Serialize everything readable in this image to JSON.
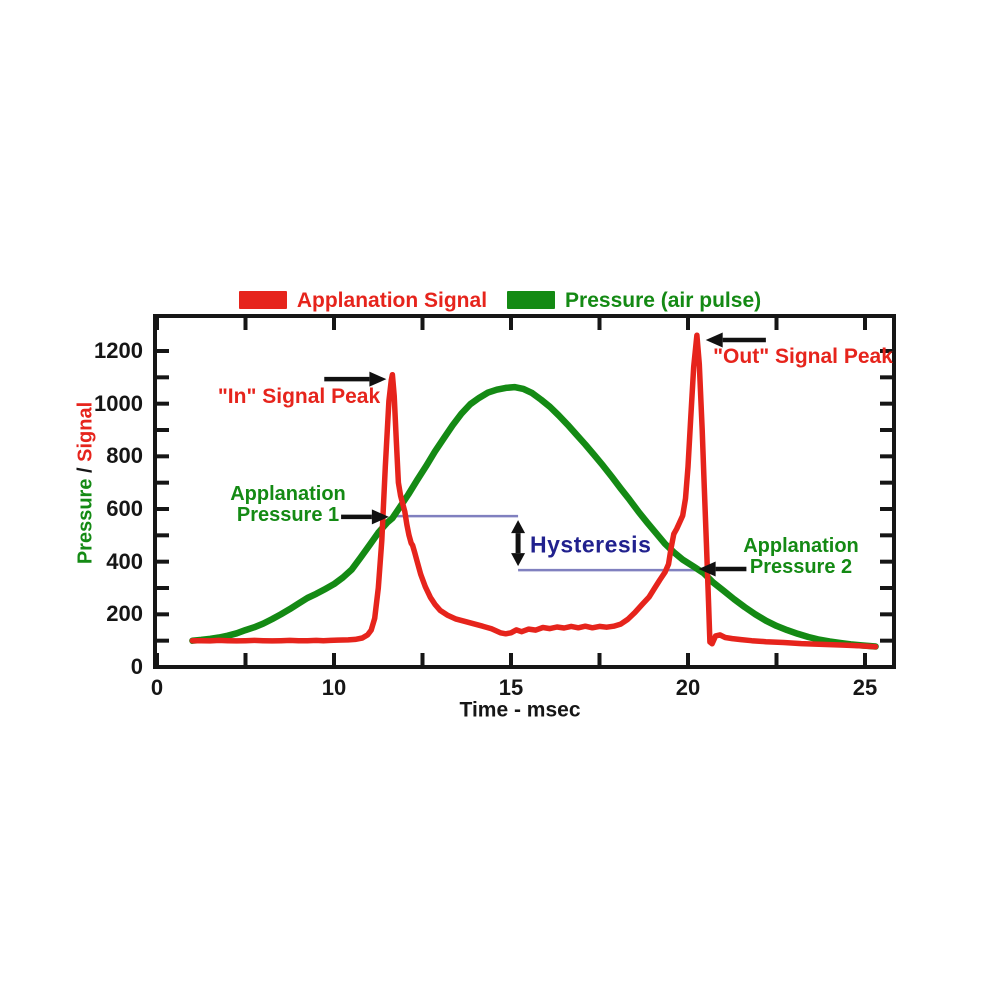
{
  "figure": {
    "description": "Ocular Response Analyzer style waveform: applanation signal and air-pulse pressure versus time"
  },
  "colors": {
    "signal_red": "#e6241c",
    "pressure_green": "#148a14",
    "hysteresis_navy": "#21218e",
    "ref_line_blue": "#8080bf",
    "axis_black": "#161616",
    "arrow_black": "#111111"
  },
  "chart_data": {
    "type": "line",
    "title": "",
    "x_axis": {
      "label": "Time - msec",
      "tick_values": [
        0,
        5,
        10,
        12.5,
        15,
        17.5,
        20,
        22.5,
        25
      ],
      "tick_labels": [
        "0",
        "",
        "10",
        "",
        "15",
        "",
        "20",
        "",
        "25"
      ]
    },
    "y_axis": {
      "label_parts": [
        {
          "text": "Pressure",
          "color": "#148a14"
        },
        {
          "text": " / ",
          "color": "#161616"
        },
        {
          "text": "Signal",
          "color": "#e6241c"
        }
      ],
      "min": 0,
      "max": 1340,
      "minor_tick_step": 100,
      "label_step": 200,
      "label_max": 1200
    },
    "legend": {
      "position": "top",
      "items": [
        {
          "label": "Applanation Signal",
          "color": "#e6241c"
        },
        {
          "label": "Pressure (air pulse)",
          "color": "#148a14"
        }
      ]
    },
    "series": [
      {
        "name": "Pressure (air pulse)",
        "color": "#148a14",
        "stroke_width": 6.5,
        "points": [
          [
            2.0,
            100
          ],
          [
            2.5,
            103
          ],
          [
            3.0,
            107
          ],
          [
            3.5,
            112
          ],
          [
            4.0,
            119
          ],
          [
            4.5,
            128
          ],
          [
            5.0,
            140
          ],
          [
            5.5,
            151
          ],
          [
            6.0,
            165
          ],
          [
            6.5,
            182
          ],
          [
            7.0,
            200
          ],
          [
            7.5,
            220
          ],
          [
            8.0,
            241
          ],
          [
            8.5,
            262
          ],
          [
            9.0,
            278
          ],
          [
            9.5,
            296
          ],
          [
            10.0,
            315
          ],
          [
            10.25,
            340
          ],
          [
            10.5,
            370
          ],
          [
            10.75,
            415
          ],
          [
            11.0,
            462
          ],
          [
            11.25,
            510
          ],
          [
            11.5,
            548
          ],
          [
            11.65,
            565
          ],
          [
            11.85,
            605
          ],
          [
            12.1,
            655
          ],
          [
            12.35,
            710
          ],
          [
            12.6,
            762
          ],
          [
            12.85,
            818
          ],
          [
            13.1,
            868
          ],
          [
            13.35,
            918
          ],
          [
            13.6,
            962
          ],
          [
            13.85,
            998
          ],
          [
            14.1,
            1022
          ],
          [
            14.35,
            1042
          ],
          [
            14.6,
            1053
          ],
          [
            14.85,
            1060
          ],
          [
            15.1,
            1063
          ],
          [
            15.35,
            1056
          ],
          [
            15.6,
            1040
          ],
          [
            15.85,
            1015
          ],
          [
            16.1,
            988
          ],
          [
            16.35,
            955
          ],
          [
            16.6,
            920
          ],
          [
            16.85,
            882
          ],
          [
            17.1,
            845
          ],
          [
            17.35,
            805
          ],
          [
            17.6,
            765
          ],
          [
            17.85,
            722
          ],
          [
            18.1,
            678
          ],
          [
            18.35,
            635
          ],
          [
            18.6,
            590
          ],
          [
            18.85,
            548
          ],
          [
            19.1,
            508
          ],
          [
            19.35,
            468
          ],
          [
            19.6,
            436
          ],
          [
            19.85,
            408
          ],
          [
            20.2,
            378
          ],
          [
            20.45,
            356
          ],
          [
            20.7,
            322
          ],
          [
            21.0,
            290
          ],
          [
            21.3,
            258
          ],
          [
            21.6,
            228
          ],
          [
            21.9,
            200
          ],
          [
            22.2,
            176
          ],
          [
            22.5,
            156
          ],
          [
            22.8,
            140
          ],
          [
            23.1,
            126
          ],
          [
            23.4,
            114
          ],
          [
            23.7,
            104
          ],
          [
            24.0,
            97
          ],
          [
            24.3,
            91
          ],
          [
            24.6,
            86
          ],
          [
            24.9,
            82
          ],
          [
            25.3,
            78
          ]
        ]
      },
      {
        "name": "Applanation Signal",
        "color": "#e6241c",
        "stroke_width": 5.5,
        "points": [
          [
            2.0,
            100
          ],
          [
            2.5,
            100
          ],
          [
            3.0,
            99
          ],
          [
            3.5,
            101
          ],
          [
            4.0,
            100
          ],
          [
            4.5,
            99
          ],
          [
            5.0,
            100
          ],
          [
            5.5,
            101
          ],
          [
            6.0,
            100
          ],
          [
            6.5,
            99
          ],
          [
            7.0,
            100
          ],
          [
            7.5,
            101
          ],
          [
            8.0,
            100
          ],
          [
            8.5,
            100
          ],
          [
            9.0,
            101
          ],
          [
            9.4,
            100
          ],
          [
            9.8,
            101
          ],
          [
            10.1,
            102
          ],
          [
            10.4,
            103
          ],
          [
            10.6,
            105
          ],
          [
            10.8,
            110
          ],
          [
            10.95,
            122
          ],
          [
            11.05,
            140
          ],
          [
            11.15,
            185
          ],
          [
            11.25,
            300
          ],
          [
            11.35,
            480
          ],
          [
            11.45,
            760
          ],
          [
            11.55,
            1010
          ],
          [
            11.62,
            1090
          ],
          [
            11.65,
            1110
          ],
          [
            11.7,
            1030
          ],
          [
            11.76,
            860
          ],
          [
            11.82,
            700
          ],
          [
            11.88,
            650
          ],
          [
            11.94,
            620
          ],
          [
            12.0,
            590
          ],
          [
            12.06,
            540
          ],
          [
            12.12,
            500
          ],
          [
            12.18,
            470
          ],
          [
            12.22,
            462
          ],
          [
            12.28,
            435
          ],
          [
            12.35,
            400
          ],
          [
            12.45,
            352
          ],
          [
            12.58,
            305
          ],
          [
            12.72,
            265
          ],
          [
            12.85,
            238
          ],
          [
            13.0,
            215
          ],
          [
            13.2,
            197
          ],
          [
            13.45,
            182
          ],
          [
            13.7,
            173
          ],
          [
            13.95,
            164
          ],
          [
            14.2,
            155
          ],
          [
            14.45,
            145
          ],
          [
            14.7,
            130
          ],
          [
            14.85,
            126
          ],
          [
            15.0,
            130
          ],
          [
            15.15,
            141
          ],
          [
            15.3,
            134
          ],
          [
            15.5,
            144
          ],
          [
            15.7,
            140
          ],
          [
            15.9,
            150
          ],
          [
            16.1,
            146
          ],
          [
            16.3,
            152
          ],
          [
            16.5,
            148
          ],
          [
            16.7,
            154
          ],
          [
            16.9,
            149
          ],
          [
            17.1,
            155
          ],
          [
            17.3,
            149
          ],
          [
            17.5,
            154
          ],
          [
            17.7,
            151
          ],
          [
            17.9,
            155
          ],
          [
            18.1,
            163
          ],
          [
            18.3,
            181
          ],
          [
            18.5,
            207
          ],
          [
            18.7,
            237
          ],
          [
            18.9,
            266
          ],
          [
            19.05,
            298
          ],
          [
            19.2,
            330
          ],
          [
            19.35,
            360
          ],
          [
            19.45,
            390
          ],
          [
            19.52,
            450
          ],
          [
            19.6,
            505
          ],
          [
            19.68,
            525
          ],
          [
            19.76,
            548
          ],
          [
            19.85,
            575
          ],
          [
            19.93,
            640
          ],
          [
            20.0,
            760
          ],
          [
            20.08,
            950
          ],
          [
            20.16,
            1140
          ],
          [
            20.25,
            1260
          ],
          [
            20.32,
            1150
          ],
          [
            20.4,
            900
          ],
          [
            20.46,
            680
          ],
          [
            20.52,
            470
          ],
          [
            20.58,
            250
          ],
          [
            20.62,
            95
          ],
          [
            20.68,
            88
          ],
          [
            20.78,
            118
          ],
          [
            20.9,
            122
          ],
          [
            21.05,
            112
          ],
          [
            21.25,
            108
          ],
          [
            21.5,
            104
          ],
          [
            21.8,
            100
          ],
          [
            22.2,
            96
          ],
          [
            22.7,
            93
          ],
          [
            23.2,
            89
          ],
          [
            23.8,
            86
          ],
          [
            24.4,
            83
          ],
          [
            24.9,
            80
          ],
          [
            25.3,
            77
          ]
        ]
      }
    ]
  },
  "annotations": {
    "in_peak": {
      "label": "\"In\" Signal Peak",
      "t": 11.65,
      "value": 1110,
      "text_anchor": {
        "t": 8.0,
        "value": 1025
      },
      "arrow": {
        "from_t": 9.45,
        "to_t": 11.48,
        "value": 1093
      }
    },
    "out_peak": {
      "label": "\"Out\" Signal Peak",
      "t": 20.25,
      "value": 1260,
      "text_anchor": {
        "t": 23.25,
        "value": 1178
      },
      "arrow": {
        "from_t": 22.2,
        "to_t": 20.5,
        "value": 1242
      }
    },
    "pressure_1": {
      "line1": "Applanation",
      "line2": "Pressure 1",
      "t": 11.65,
      "value": 565,
      "text_anchor": {
        "t": 7.42,
        "value": 617
      },
      "arrow": {
        "from_t": 10.2,
        "to_t": 11.55,
        "value": 570
      }
    },
    "pressure_2": {
      "line1": "Applanation",
      "line2": "Pressure 2",
      "t": 20.2,
      "value": 380,
      "text_anchor": {
        "t": 23.2,
        "value": 418
      },
      "arrow": {
        "from_t": 21.65,
        "to_t": 20.3,
        "value": 372
      }
    },
    "hysteresis": {
      "label": "Hysteresis",
      "arrow_t": 15.2,
      "upper_value": 573,
      "lower_value": 368,
      "upper_line": {
        "from_t": 11.62,
        "to_t": 15.2
      },
      "lower_line": {
        "from_t": 15.2,
        "to_t": 20.2
      },
      "text_anchor": {
        "t": 15.55,
        "value": 462
      }
    }
  }
}
